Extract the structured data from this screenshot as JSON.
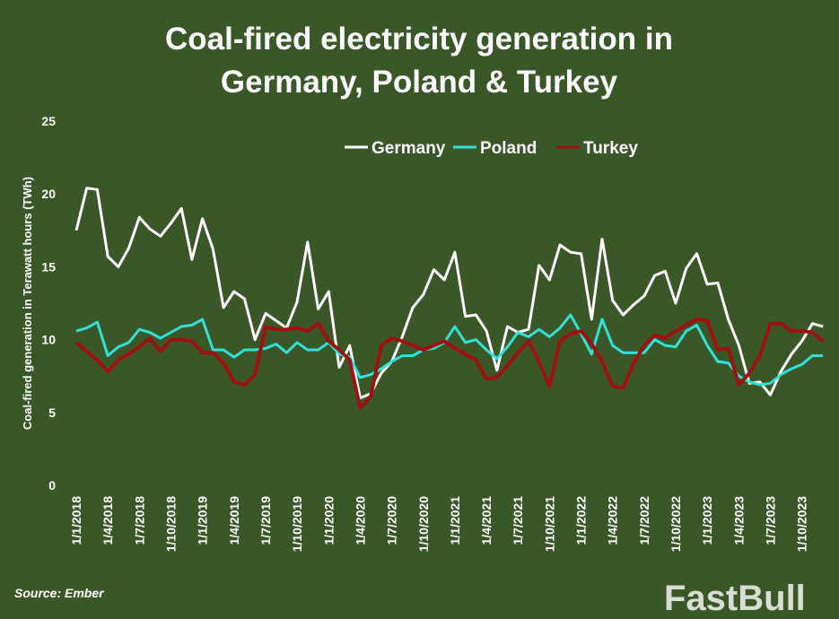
{
  "chart_data": {
    "type": "line",
    "title": [
      "Coal-fired electricity generation in",
      "Germany, Poland & Turkey"
    ],
    "ylabel": "Coal-fired generation in Terawatt hours (TWh)",
    "xlabel": "",
    "ylim": [
      0,
      25
    ],
    "yticks": [
      0,
      5,
      10,
      15,
      20,
      25
    ],
    "x_start": "1/1/2018",
    "x_frequency": "monthly",
    "xtick_labels": [
      "1/1/2018",
      "1/4/2018",
      "1/7/2018",
      "1/10/2018",
      "1/1/2019",
      "1/4/2019",
      "1/7/2019",
      "1/10/2019",
      "1/1/2020",
      "1/4/2020",
      "1/7/2020",
      "1/10/2020",
      "1/1/2021",
      "1/4/2021",
      "1/7/2021",
      "1/10/2021",
      "1/1/2022",
      "1/4/2022",
      "1/7/2022",
      "1/10/2022",
      "1/1/2023",
      "1/4/2023",
      "1/7/2023",
      "1/10/2023"
    ],
    "grid": false,
    "legend_position": "top",
    "series": [
      {
        "name": "Germany",
        "color": "#ffffff",
        "values": [
          17.5,
          20.4,
          20.3,
          15.7,
          15.0,
          16.3,
          18.4,
          17.6,
          17.1,
          18.0,
          19.0,
          15.5,
          18.3,
          16.2,
          12.2,
          13.3,
          12.8,
          10.0,
          11.8,
          11.3,
          10.8,
          12.6,
          16.7,
          12.1,
          13.3,
          8.1,
          9.6,
          6.0,
          6.3,
          7.7,
          8.5,
          10.2,
          12.2,
          13.1,
          14.8,
          14.1,
          16.0,
          11.6,
          11.7,
          10.6,
          7.9,
          10.9,
          10.5,
          10.7,
          15.1,
          14.1,
          16.5,
          16.0,
          15.9,
          11.4,
          16.9,
          12.7,
          11.7,
          12.4,
          13.0,
          14.4,
          14.7,
          12.5,
          14.9,
          15.9,
          13.8,
          13.9,
          11.4,
          9.6,
          7.0,
          7.1,
          6.2,
          7.8,
          9.0,
          9.9,
          11.1,
          10.9
        ]
      },
      {
        "name": "Poland",
        "color": "#33e0d8",
        "values": [
          10.6,
          10.8,
          11.2,
          8.9,
          9.5,
          9.8,
          10.7,
          10.5,
          10.1,
          10.5,
          10.9,
          11.0,
          11.4,
          9.3,
          9.3,
          8.8,
          9.3,
          9.3,
          9.4,
          9.7,
          9.1,
          9.8,
          9.3,
          9.3,
          9.8,
          9.0,
          8.8,
          7.4,
          7.6,
          8.0,
          8.5,
          8.9,
          8.9,
          9.3,
          9.4,
          9.8,
          10.9,
          9.8,
          10.0,
          9.3,
          8.7,
          9.5,
          10.5,
          10.2,
          10.7,
          10.2,
          10.8,
          11.7,
          10.4,
          9.0,
          11.4,
          9.6,
          9.1,
          9.1,
          9.1,
          10.0,
          9.6,
          9.5,
          10.6,
          11.0,
          9.6,
          8.5,
          8.4,
          7.5,
          7.1,
          6.9,
          7.0,
          7.6,
          8.0,
          8.3,
          8.9,
          8.9
        ]
      },
      {
        "name": "Turkey",
        "color": "#a01010",
        "values": [
          9.8,
          9.2,
          8.6,
          7.8,
          8.6,
          9.0,
          9.5,
          10.1,
          9.2,
          10.0,
          10.0,
          9.9,
          9.1,
          9.1,
          8.4,
          7.1,
          6.9,
          7.6,
          10.9,
          10.7,
          10.7,
          10.8,
          10.6,
          11.1,
          9.9,
          9.3,
          8.6,
          5.3,
          6.1,
          9.6,
          10.1,
          9.9,
          9.6,
          9.3,
          9.6,
          9.9,
          9.4,
          9.0,
          8.6,
          7.3,
          7.4,
          8.2,
          9.1,
          9.9,
          8.5,
          6.8,
          9.9,
          10.4,
          10.6,
          9.7,
          8.5,
          6.8,
          6.7,
          8.4,
          9.6,
          10.3,
          10.1,
          10.6,
          11.0,
          11.4,
          11.3,
          9.3,
          9.4,
          6.9,
          7.7,
          8.9,
          11.1,
          11.1,
          10.6,
          10.6,
          10.5,
          9.9
        ]
      }
    ],
    "source": "Source: Ember"
  },
  "watermark": "FastBull",
  "background_color": "#3a5727"
}
